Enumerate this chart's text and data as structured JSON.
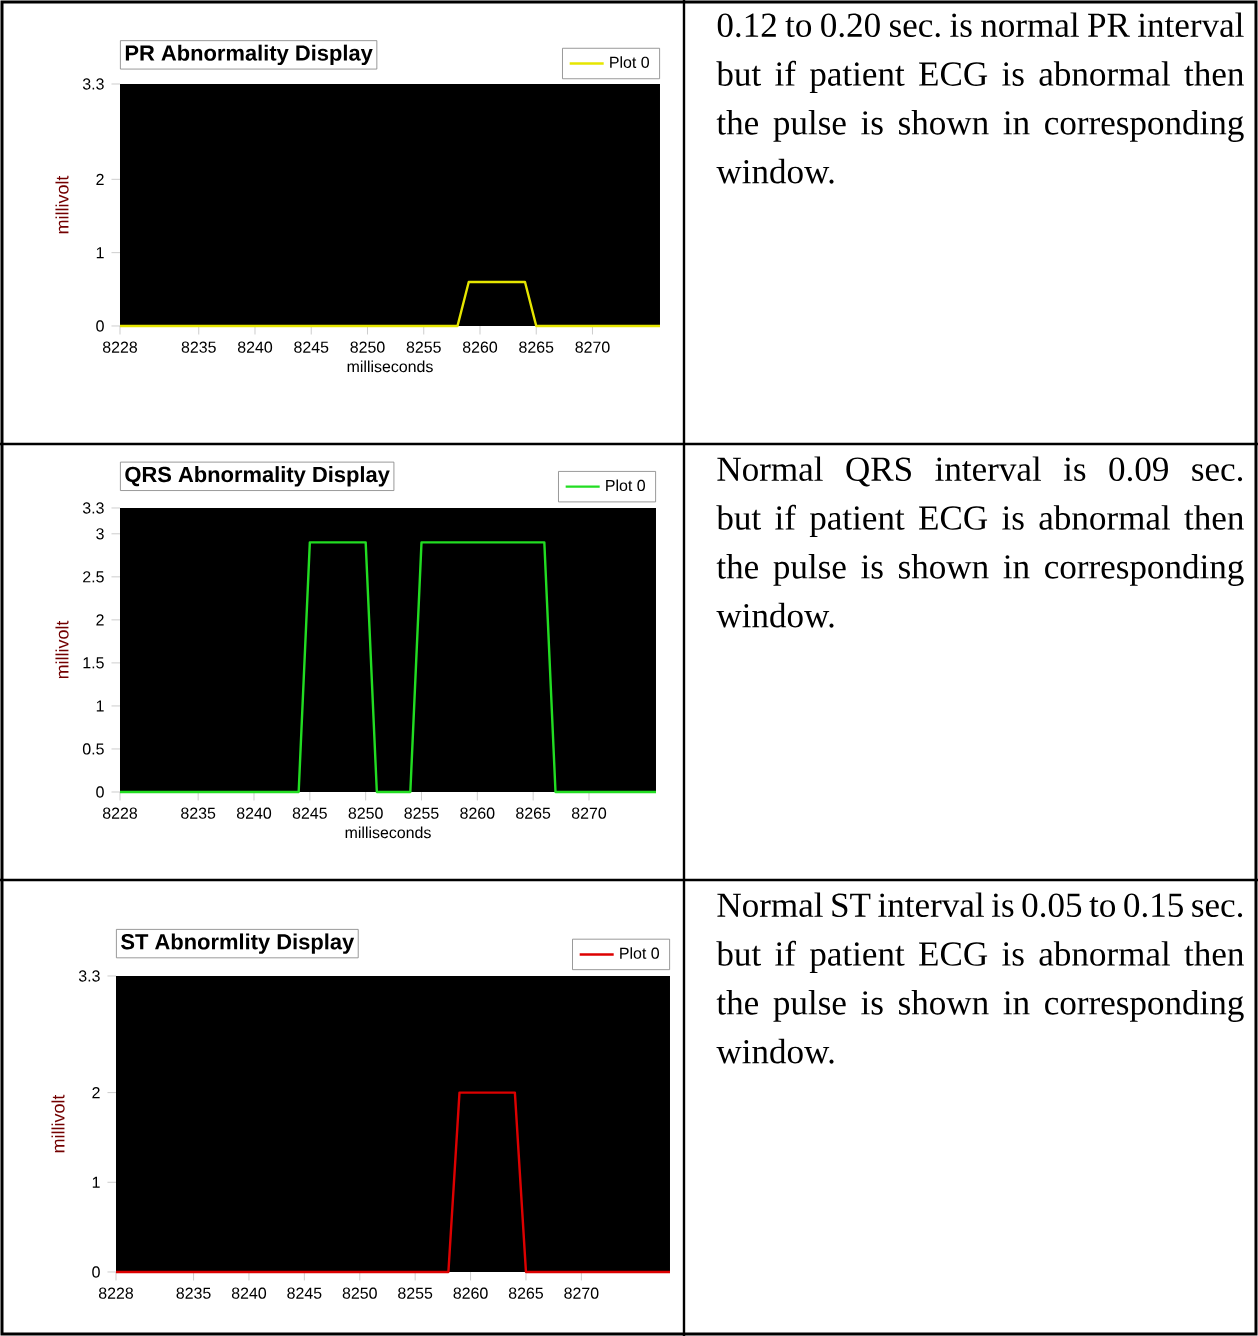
{
  "chart_data": [
    {
      "type": "line",
      "title": "PR Abnormality Display",
      "xlabel": "milliseconds",
      "ylabel": "millivolt",
      "x": [
        8228,
        8258,
        8259,
        8264,
        8265,
        8276
      ],
      "series": [
        {
          "name": "Plot 0",
          "color": "#e6e600",
          "values": [
            0,
            0,
            0.6,
            0.6,
            0,
            0
          ]
        }
      ],
      "xlim": [
        8228,
        8276
      ],
      "ylim": [
        0,
        3.3
      ],
      "xticks": [
        8228,
        8235,
        8240,
        8245,
        8250,
        8255,
        8260,
        8265,
        8270
      ],
      "yticks": [
        0,
        1,
        2,
        3.3
      ],
      "legend": "top right",
      "annotations": [
        "0.12 to 0.20 sec. is normal PR interval but if patient ECG is abnormal then the pulse is shown in corresponding window."
      ]
    },
    {
      "type": "line",
      "title": "QRS Abnormality Display",
      "xlabel": "milliseconds",
      "ylabel": "millivolt",
      "x": [
        8228,
        8244,
        8245,
        8250,
        8251,
        8254,
        8255,
        8266,
        8267,
        8276
      ],
      "series": [
        {
          "name": "Plot 0",
          "color": "#22dd22",
          "values": [
            0,
            0,
            2.9,
            2.9,
            0,
            0,
            2.9,
            2.9,
            0,
            0
          ]
        }
      ],
      "xlim": [
        8228,
        8276
      ],
      "ylim": [
        0,
        3.3
      ],
      "xticks": [
        8228,
        8235,
        8240,
        8245,
        8250,
        8255,
        8260,
        8265,
        8270
      ],
      "yticks": [
        0,
        0.5,
        1,
        1.5,
        2,
        2.5,
        3,
        3.3
      ],
      "legend": "top right",
      "annotations": [
        "Normal QRS interval is 0.09 sec. but if patient ECG is abnormal then the pulse is shown in corresponding window."
      ]
    },
    {
      "type": "line",
      "title": "ST Abnormlity Display",
      "ylabel": "millivolt",
      "x": [
        8228,
        8258,
        8259,
        8264,
        8265,
        8278
      ],
      "series": [
        {
          "name": "Plot 0",
          "color": "#dd0000",
          "values": [
            0,
            0,
            2,
            2,
            0,
            0
          ]
        }
      ],
      "xlim": [
        8228,
        8278
      ],
      "ylim": [
        0,
        3.3
      ],
      "xticks": [
        8228,
        8235,
        8240,
        8245,
        8250,
        8255,
        8260,
        8265,
        8270
      ],
      "yticks": [
        0,
        1,
        2,
        3.3
      ],
      "legend": "top right",
      "annotations": [
        "Normal ST interval is 0.05 to 0.15 sec. but if patient ECG is abnormal then the pulse is shown in corresponding window."
      ]
    }
  ]
}
